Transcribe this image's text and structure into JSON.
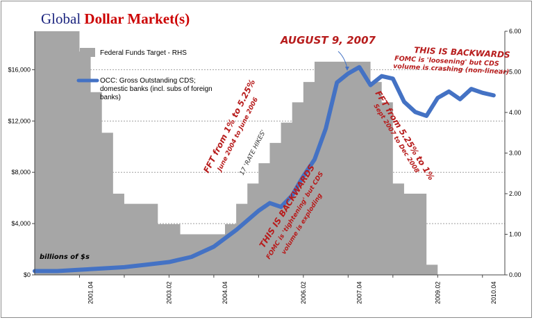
{
  "chart_data": {
    "type": "line",
    "title_part1": "Global ",
    "title_part2": "Dollar Market(s)",
    "y_left": {
      "ticks": [
        "$0",
        "$4,000",
        "$8,000",
        "$12,000",
        "$16,000"
      ],
      "range": [
        0,
        19000
      ]
    },
    "y_right": {
      "ticks": [
        "0.00",
        "1.00",
        "2.00",
        "3.00",
        "4.00",
        "5.00",
        "6.00"
      ],
      "range": [
        0,
        6
      ]
    },
    "x_ticks": [
      "2001.Q1",
      "2002.Q1",
      "2003.Q1",
      "2004.Q1",
      "2005.Q1",
      "2006.Q1",
      "2007.Q1",
      "2008.Q1",
      "2009.Q1",
      "2010.Q1"
    ],
    "x_labels": [
      "2001.04",
      "2003.02",
      "2004.04",
      "2006.02",
      "2007.04",
      "2009.02",
      "2010.04"
    ],
    "x_label_ticks": [
      "2001.Q2",
      "2003.Q1",
      "2004.Q2",
      "2006.Q1",
      "2007.Q2",
      "2009.Q1",
      "2010.Q2"
    ],
    "x_range": [
      "2000.Q1",
      "2010.Q3"
    ],
    "unit_note": "billions of $s",
    "series": [
      {
        "name": "Federal Funds Target - RHS",
        "type": "area",
        "color": "#a6a6a6",
        "x": [
          "2000.Q1",
          "2000.Q3",
          "2001.Q1",
          "2001.Q2",
          "2001.Q3",
          "2001.Q4",
          "2002.Q1",
          "2002.Q2",
          "2002.Q3",
          "2002.Q4",
          "2003.Q1",
          "2003.Q2",
          "2003.Q3",
          "2003.Q4",
          "2004.Q1",
          "2004.Q2",
          "2004.Q3",
          "2004.Q4",
          "2005.Q1",
          "2005.Q2",
          "2005.Q3",
          "2005.Q4",
          "2006.Q1",
          "2006.Q2",
          "2006.Q3",
          "2006.Q4",
          "2007.Q1",
          "2007.Q2",
          "2007.Q3",
          "2007.Q4",
          "2008.Q1",
          "2008.Q2",
          "2008.Q3",
          "2008.Q4"
        ],
        "values": [
          6.0,
          6.5,
          5.5,
          4.5,
          3.5,
          2.0,
          1.75,
          1.75,
          1.75,
          1.25,
          1.25,
          1.0,
          1.0,
          1.0,
          1.0,
          1.25,
          1.75,
          2.25,
          2.75,
          3.25,
          3.75,
          4.25,
          4.75,
          5.25,
          5.25,
          5.25,
          5.25,
          5.25,
          4.75,
          4.25,
          2.25,
          2.0,
          2.0,
          0.25
        ]
      },
      {
        "name": "OCC: Gross Outstanding CDS; domestic banks (incl. subs of foreign banks)",
        "type": "line",
        "color": "#4472c4",
        "x": [
          "2000.Q1",
          "2000.Q3",
          "2001.Q1",
          "2001.Q3",
          "2002.Q1",
          "2002.Q3",
          "2003.Q1",
          "2003.Q3",
          "2004.Q1",
          "2004.Q3",
          "2005.Q1",
          "2005.Q2",
          "2005.Q3",
          "2005.Q4",
          "2006.Q1",
          "2006.Q2",
          "2006.Q3",
          "2006.Q4",
          "2007.Q1",
          "2007.Q2",
          "2007.Q3",
          "2007.Q4",
          "2008.Q1",
          "2008.Q2",
          "2008.Q3",
          "2008.Q4",
          "2009.Q1",
          "2009.Q2",
          "2009.Q3",
          "2009.Q4",
          "2010.Q1",
          "2010.Q2"
        ],
        "values": [
          300,
          300,
          400,
          500,
          600,
          800,
          1000,
          1400,
          2200,
          3500,
          5000,
          5600,
          5300,
          6200,
          7700,
          9000,
          11400,
          15000,
          15700,
          16200,
          14800,
          15500,
          15300,
          13500,
          12700,
          12400,
          13800,
          14300,
          13700,
          14500,
          14200,
          14000
        ]
      }
    ],
    "annotations": {
      "aug": "AUGUST 9, 2007",
      "backwards_top_line1": "THIS IS BACKWARDS",
      "backwards_top_line2": "FOMC is 'loosening' but CDS",
      "backwards_top_line3": "volume is crashing (non-linear)",
      "fft_up_line1": "FFT from 1% to 5.25%",
      "fft_up_line2": "June 2004 to June 2006",
      "rate_hikes": "17 'RATE HIKES'",
      "fft_down_line1": "FFT from 5.25% to 1%",
      "fft_down_line2": "Sept 2007 to Dec 2008",
      "backwards_bottom_line1": "THIS IS BACKWARDS",
      "backwards_bottom_line2": "FOMC is 'tightening' but CDS",
      "backwards_bottom_line3": "volume is exploding"
    }
  }
}
